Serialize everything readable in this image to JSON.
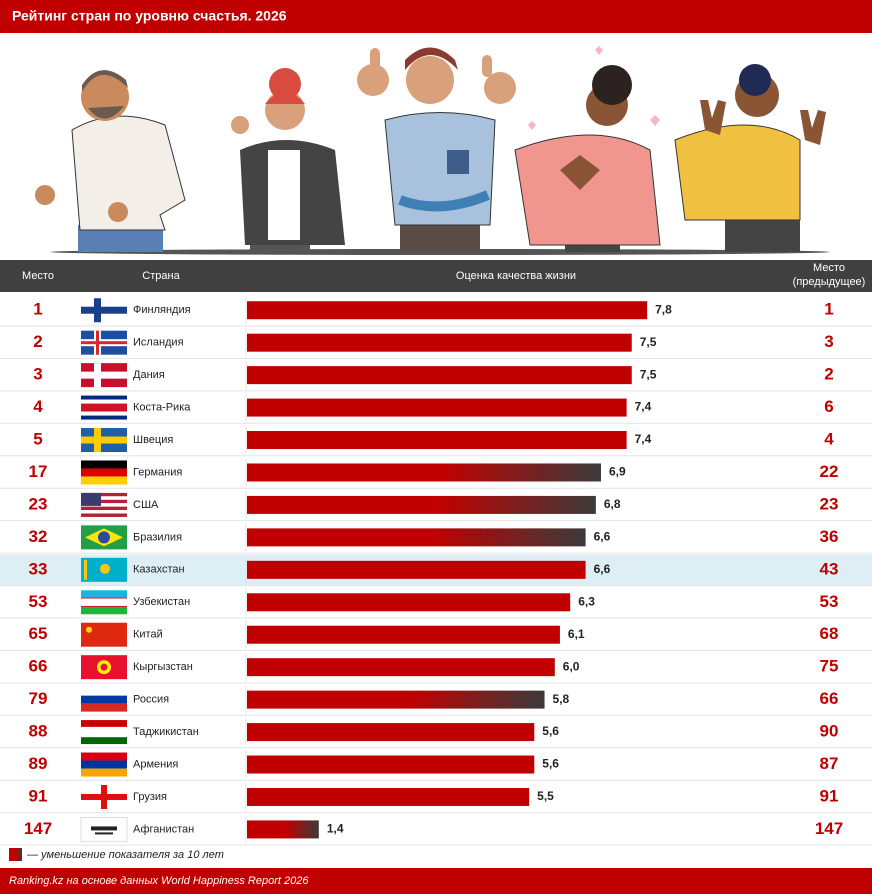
{
  "chart_data": {
    "type": "bar",
    "orientation": "horizontal",
    "title": "Рейтинг стран по уровню счастья. 2026",
    "headers": {
      "rank": "Место",
      "country": "Страна",
      "value": "Оценка качества жизни",
      "prev_rank": "Место (предыдущее)"
    },
    "categories": [
      "Финляндия",
      "Исландия",
      "Дания",
      "Коста-Рика",
      "Швеция",
      "Германия",
      "США",
      "Бразилия",
      "Казахстан",
      "Узбекистан",
      "Китай",
      "Кыргызстан",
      "Россия",
      "Таджикистан",
      "Армения",
      "Грузия",
      "Афганистан"
    ],
    "values": [
      7.8,
      7.5,
      7.5,
      7.4,
      7.4,
      6.9,
      6.8,
      6.6,
      6.6,
      6.3,
      6.1,
      6.0,
      5.8,
      5.6,
      5.6,
      5.5,
      1.4
    ],
    "value_labels": [
      "7,8",
      "7,5",
      "7,5",
      "7,4",
      "7,4",
      "6,9",
      "6,8",
      "6,6",
      "6,6",
      "6,3",
      "6,1",
      "6,0",
      "5,8",
      "5,6",
      "5,6",
      "5,5",
      "1,4"
    ],
    "ranks": [
      1,
      2,
      3,
      4,
      5,
      17,
      23,
      32,
      33,
      53,
      65,
      66,
      79,
      88,
      89,
      91,
      147
    ],
    "prev_ranks": [
      1,
      3,
      2,
      6,
      4,
      22,
      23,
      36,
      43,
      53,
      68,
      75,
      66,
      90,
      87,
      91,
      147
    ],
    "declined": [
      false,
      false,
      false,
      false,
      false,
      true,
      true,
      true,
      false,
      false,
      false,
      false,
      true,
      false,
      false,
      false,
      true
    ],
    "highlight_index": 8,
    "color": "#c00000",
    "decline_color": "#3a3a3a",
    "xlim": [
      0,
      10
    ],
    "legend": "— уменьшение показателя за 10 лет",
    "source": "Ranking.kz на основе данных World Happiness Report 2026"
  }
}
